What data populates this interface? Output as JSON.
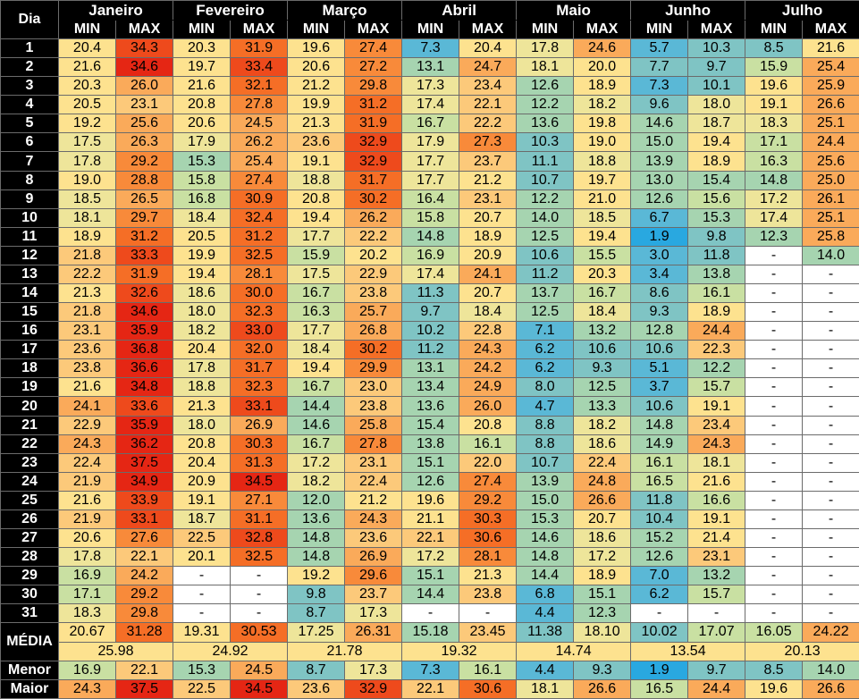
{
  "header": {
    "corner_label": "Dia",
    "min_label": "MIN",
    "max_label": "MAX",
    "months": [
      "Janeiro",
      "Fevereiro",
      "Março",
      "Abril",
      "Maio",
      "Junho",
      "Julho"
    ]
  },
  "row_labels": {
    "media": "MÉDIA",
    "menor": "Menor",
    "maior": "Maior"
  },
  "empty_symbol": "-",
  "days": [
    {
      "day": "1",
      "v": [
        "20.4",
        "34.3",
        "20.3",
        "31.9",
        "19.6",
        "27.4",
        "7.3",
        "20.4",
        "17.8",
        "24.6",
        "5.7",
        "10.3",
        "8.5",
        "21.6"
      ]
    },
    {
      "day": "2",
      "v": [
        "21.6",
        "34.6",
        "19.7",
        "33.4",
        "20.6",
        "27.2",
        "13.1",
        "24.7",
        "18.1",
        "20.0",
        "7.7",
        "9.7",
        "15.9",
        "25.4"
      ]
    },
    {
      "day": "3",
      "v": [
        "20.3",
        "26.0",
        "21.6",
        "32.1",
        "21.2",
        "29.8",
        "17.3",
        "23.4",
        "12.6",
        "18.9",
        "7.3",
        "10.1",
        "19.6",
        "25.9"
      ]
    },
    {
      "day": "4",
      "v": [
        "20.5",
        "23.1",
        "20.8",
        "27.8",
        "19.9",
        "31.2",
        "17.4",
        "22.1",
        "12.2",
        "18.2",
        "9.6",
        "18.0",
        "19.1",
        "26.6"
      ]
    },
    {
      "day": "5",
      "v": [
        "19.2",
        "25.6",
        "20.6",
        "24.5",
        "21.3",
        "31.9",
        "16.7",
        "22.2",
        "13.6",
        "19.8",
        "14.6",
        "18.7",
        "18.3",
        "25.1"
      ]
    },
    {
      "day": "6",
      "v": [
        "17.5",
        "26.3",
        "17.9",
        "26.2",
        "23.6",
        "32.9",
        "17.9",
        "27.3",
        "10.3",
        "19.0",
        "15.0",
        "19.4",
        "17.1",
        "24.4"
      ]
    },
    {
      "day": "7",
      "v": [
        "17.8",
        "29.2",
        "15.3",
        "25.4",
        "19.1",
        "32.9",
        "17.7",
        "23.7",
        "11.1",
        "18.8",
        "13.9",
        "18.9",
        "16.3",
        "25.6"
      ]
    },
    {
      "day": "8",
      "v": [
        "19.0",
        "28.8",
        "15.8",
        "27.4",
        "18.8",
        "31.7",
        "17.7",
        "21.2",
        "10.7",
        "19.7",
        "13.0",
        "15.4",
        "14.8",
        "25.0"
      ]
    },
    {
      "day": "9",
      "v": [
        "18.5",
        "26.5",
        "16.8",
        "30.9",
        "20.8",
        "30.2",
        "16.4",
        "23.1",
        "12.2",
        "21.0",
        "12.6",
        "15.6",
        "17.2",
        "26.1"
      ]
    },
    {
      "day": "10",
      "v": [
        "18.1",
        "29.7",
        "18.4",
        "32.4",
        "19.4",
        "26.2",
        "15.8",
        "20.7",
        "14.0",
        "18.5",
        "6.7",
        "15.3",
        "17.4",
        "25.1"
      ]
    },
    {
      "day": "11",
      "v": [
        "18.9",
        "31.2",
        "20.5",
        "31.2",
        "17.7",
        "22.2",
        "14.8",
        "18.9",
        "12.5",
        "19.4",
        "1.9",
        "9.8",
        "12.3",
        "25.8"
      ]
    },
    {
      "day": "12",
      "v": [
        "21.8",
        "33.3",
        "19.9",
        "32.5",
        "15.9",
        "20.2",
        "16.9",
        "20.9",
        "10.6",
        "15.5",
        "3.0",
        "11.8",
        "-",
        "14.0"
      ]
    },
    {
      "day": "13",
      "v": [
        "22.2",
        "31.9",
        "19.4",
        "28.1",
        "17.5",
        "22.9",
        "17.4",
        "24.1",
        "11.2",
        "20.3",
        "3.4",
        "13.8",
        "-",
        "-"
      ]
    },
    {
      "day": "14",
      "v": [
        "21.3",
        "32.6",
        "18.6",
        "30.0",
        "16.7",
        "23.8",
        "11.3",
        "20.7",
        "13.7",
        "16.7",
        "8.6",
        "16.1",
        "-",
        "-"
      ]
    },
    {
      "day": "15",
      "v": [
        "21.8",
        "34.6",
        "18.0",
        "32.3",
        "16.3",
        "25.7",
        "9.7",
        "18.4",
        "12.5",
        "18.4",
        "9.3",
        "18.9",
        "-",
        "-"
      ]
    },
    {
      "day": "16",
      "v": [
        "23.1",
        "35.9",
        "18.2",
        "33.0",
        "17.7",
        "26.8",
        "10.2",
        "22.8",
        "7.1",
        "13.2",
        "12.8",
        "24.4",
        "-",
        "-"
      ]
    },
    {
      "day": "17",
      "v": [
        "23.6",
        "36.8",
        "20.4",
        "32.0",
        "18.4",
        "30.2",
        "11.2",
        "24.3",
        "6.2",
        "10.6",
        "10.6",
        "22.3",
        "-",
        "-"
      ]
    },
    {
      "day": "18",
      "v": [
        "23.8",
        "36.6",
        "17.8",
        "31.7",
        "19.4",
        "29.9",
        "13.1",
        "24.2",
        "6.2",
        "9.3",
        "5.1",
        "12.2",
        "-",
        "-"
      ]
    },
    {
      "day": "19",
      "v": [
        "21.6",
        "34.8",
        "18.8",
        "32.3",
        "16.7",
        "23.0",
        "13.4",
        "24.9",
        "8.0",
        "12.5",
        "3.7",
        "15.7",
        "-",
        "-"
      ]
    },
    {
      "day": "20",
      "v": [
        "24.1",
        "33.6",
        "21.3",
        "33.1",
        "14.4",
        "23.8",
        "13.6",
        "26.0",
        "4.7",
        "13.3",
        "10.6",
        "19.1",
        "-",
        "-"
      ]
    },
    {
      "day": "21",
      "v": [
        "22.9",
        "35.9",
        "18.0",
        "26.9",
        "14.6",
        "25.8",
        "15.4",
        "20.8",
        "8.8",
        "18.2",
        "14.8",
        "23.4",
        "-",
        "-"
      ]
    },
    {
      "day": "22",
      "v": [
        "24.3",
        "36.2",
        "20.8",
        "30.3",
        "16.7",
        "27.8",
        "13.8",
        "16.1",
        "8.8",
        "18.6",
        "14.9",
        "24.3",
        "-",
        "-"
      ]
    },
    {
      "day": "23",
      "v": [
        "22.4",
        "37.5",
        "20.4",
        "31.3",
        "17.2",
        "23.1",
        "15.1",
        "22.0",
        "10.7",
        "22.4",
        "16.1",
        "18.1",
        "-",
        "-"
      ]
    },
    {
      "day": "24",
      "v": [
        "21.9",
        "34.9",
        "20.9",
        "34.5",
        "18.2",
        "22.4",
        "12.6",
        "27.4",
        "13.9",
        "24.8",
        "16.5",
        "21.6",
        "-",
        "-"
      ]
    },
    {
      "day": "25",
      "v": [
        "21.6",
        "33.9",
        "19.1",
        "27.1",
        "12.0",
        "21.2",
        "19.6",
        "29.2",
        "15.0",
        "26.6",
        "11.8",
        "16.6",
        "-",
        "-"
      ]
    },
    {
      "day": "26",
      "v": [
        "21.9",
        "33.1",
        "18.7",
        "31.1",
        "13.6",
        "24.3",
        "21.1",
        "30.3",
        "15.3",
        "20.7",
        "10.4",
        "19.1",
        "-",
        "-"
      ]
    },
    {
      "day": "27",
      "v": [
        "20.6",
        "27.6",
        "22.5",
        "32.8",
        "14.8",
        "23.6",
        "22.1",
        "30.6",
        "14.6",
        "18.6",
        "15.2",
        "21.4",
        "-",
        "-"
      ]
    },
    {
      "day": "28",
      "v": [
        "17.8",
        "22.1",
        "20.1",
        "32.5",
        "14.8",
        "26.9",
        "17.2",
        "28.1",
        "14.8",
        "17.2",
        "12.6",
        "23.1",
        "-",
        "-"
      ]
    },
    {
      "day": "29",
      "v": [
        "16.9",
        "24.2",
        "-",
        "-",
        "19.2",
        "29.6",
        "15.1",
        "21.3",
        "14.4",
        "18.9",
        "7.0",
        "13.2",
        "-",
        "-"
      ]
    },
    {
      "day": "30",
      "v": [
        "17.1",
        "29.2",
        "-",
        "-",
        "9.8",
        "23.7",
        "14.4",
        "23.8",
        "6.8",
        "15.1",
        "6.2",
        "15.7",
        "-",
        "-"
      ]
    },
    {
      "day": "31",
      "v": [
        "18.3",
        "29.8",
        "-",
        "-",
        "8.7",
        "17.3",
        "-",
        "-",
        "4.4",
        "12.3",
        "-",
        "-",
        "-",
        "-"
      ]
    }
  ],
  "media_minmax": [
    "20.67",
    "31.28",
    "19.31",
    "30.53",
    "17.25",
    "26.31",
    "15.18",
    "23.45",
    "11.38",
    "18.10",
    "10.02",
    "17.07",
    "16.05",
    "24.22"
  ],
  "media_month": [
    "25.98",
    "24.92",
    "21.78",
    "19.32",
    "14.74",
    "13.54",
    "20.13"
  ],
  "menor": [
    "16.9",
    "22.1",
    "15.3",
    "24.5",
    "8.7",
    "17.3",
    "7.3",
    "16.1",
    "4.4",
    "9.3",
    "1.9",
    "9.7",
    "8.5",
    "14.0"
  ],
  "maior": [
    "24.3",
    "37.5",
    "22.5",
    "34.5",
    "23.6",
    "32.9",
    "22.1",
    "30.6",
    "18.1",
    "26.6",
    "16.5",
    "24.4",
    "19.6",
    "26.6"
  ],
  "colors": {
    "c1": "#29a8e0",
    "c2": "#5ab8d6",
    "c3": "#7fc4c4",
    "c4": "#a6d4b0",
    "c5": "#c9e0a2",
    "c6": "#eee59a",
    "c7": "#fde28f",
    "c8": "#fcc97a",
    "c9": "#faaa5a",
    "c10": "#f88a3a",
    "c11": "#f56e26",
    "c12": "#ee4a1c",
    "c13": "#e52614",
    "empty": "#ffffff",
    "avg_month": "#fde28f"
  }
}
